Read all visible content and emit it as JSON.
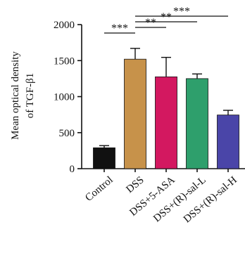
{
  "chart_data": {
    "type": "bar",
    "ylabel_line1": "Mean optical density",
    "ylabel_line2": "of TGF-β1",
    "categories": [
      "Control",
      "DSS",
      "DSS+5-ASA",
      "DSS+(R)-sal-L",
      "DSS+(R)-sal-H"
    ],
    "values": [
      290,
      1520,
      1275,
      1250,
      745
    ],
    "errors": [
      30,
      150,
      270,
      65,
      65
    ],
    "colors": [
      "#111111",
      "#C7924A",
      "#D31860",
      "#2E9F6C",
      "#4A45A8"
    ],
    "ylim": [
      0,
      2000
    ],
    "yticks": [
      0,
      500,
      1000,
      1500,
      2000
    ],
    "grid": false,
    "significance": [
      {
        "from": 0,
        "to": 1,
        "label": "***",
        "level": 1
      },
      {
        "from": 1,
        "to": 2,
        "label": "**",
        "level": 2
      },
      {
        "from": 1,
        "to": 3,
        "label": "**",
        "level": 3
      },
      {
        "from": 1,
        "to": 4,
        "label": "***",
        "level": 4
      }
    ]
  }
}
